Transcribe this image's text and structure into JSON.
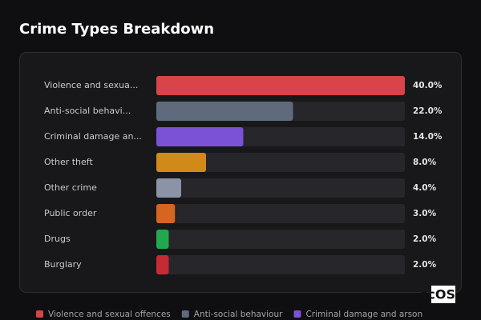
{
  "chart_data": {
    "type": "bar",
    "orientation": "horizontal",
    "title": "Crime Types Breakdown",
    "categories": [
      "Violence and sexua...",
      "Anti-social behavi...",
      "Criminal damage an...",
      "Other theft",
      "Other crime",
      "Public order",
      "Drugs",
      "Burglary"
    ],
    "values": [
      40,
      22,
      14,
      8,
      4,
      3,
      2,
      2
    ],
    "value_labels": [
      "40.0%",
      "22.0%",
      "14.0%",
      "8.0%",
      "4.0%",
      "3.0%",
      "2.0%",
      "2.0%"
    ],
    "colors": [
      "#d9434a",
      "#5f6b7d",
      "#7b52d6",
      "#d18a17",
      "#8a94a6",
      "#d5651f",
      "#22a84f",
      "#c62a35"
    ],
    "xlim": [
      0,
      40
    ],
    "legend": [
      "Violence and sexual offences",
      "Anti-social behaviour",
      "Criminal damage and arson"
    ],
    "watermark": "scOS"
  }
}
